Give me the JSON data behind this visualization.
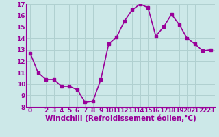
{
  "x": [
    0,
    1,
    2,
    3,
    4,
    5,
    6,
    7,
    8,
    9,
    10,
    11,
    12,
    13,
    14,
    15,
    16,
    17,
    18,
    19,
    20,
    21,
    22,
    23
  ],
  "y": [
    12.7,
    11.0,
    10.4,
    10.4,
    9.8,
    9.8,
    9.5,
    8.4,
    8.5,
    10.4,
    13.5,
    14.1,
    15.5,
    16.5,
    17.0,
    16.7,
    14.2,
    15.0,
    16.1,
    15.2,
    14.0,
    13.5,
    12.9,
    13.0
  ],
  "line_color": "#990099",
  "marker": "s",
  "marker_size": 2.5,
  "bg_color": "#cce8e8",
  "grid_color": "#b0d0d0",
  "xlabel": "Windchill (Refroidissement éolien,°C)",
  "xlabel_color": "#990099",
  "xlim": [
    -0.5,
    23.5
  ],
  "ylim": [
    8,
    17
  ],
  "yticks": [
    8,
    9,
    10,
    11,
    12,
    13,
    14,
    15,
    16,
    17
  ],
  "xticks": [
    0,
    2,
    3,
    4,
    5,
    6,
    7,
    8,
    9,
    10,
    11,
    12,
    13,
    14,
    15,
    16,
    17,
    18,
    19,
    20,
    21,
    22,
    23
  ],
  "tick_label_size": 6.5,
  "xlabel_size": 7.5,
  "linewidth": 1.2
}
